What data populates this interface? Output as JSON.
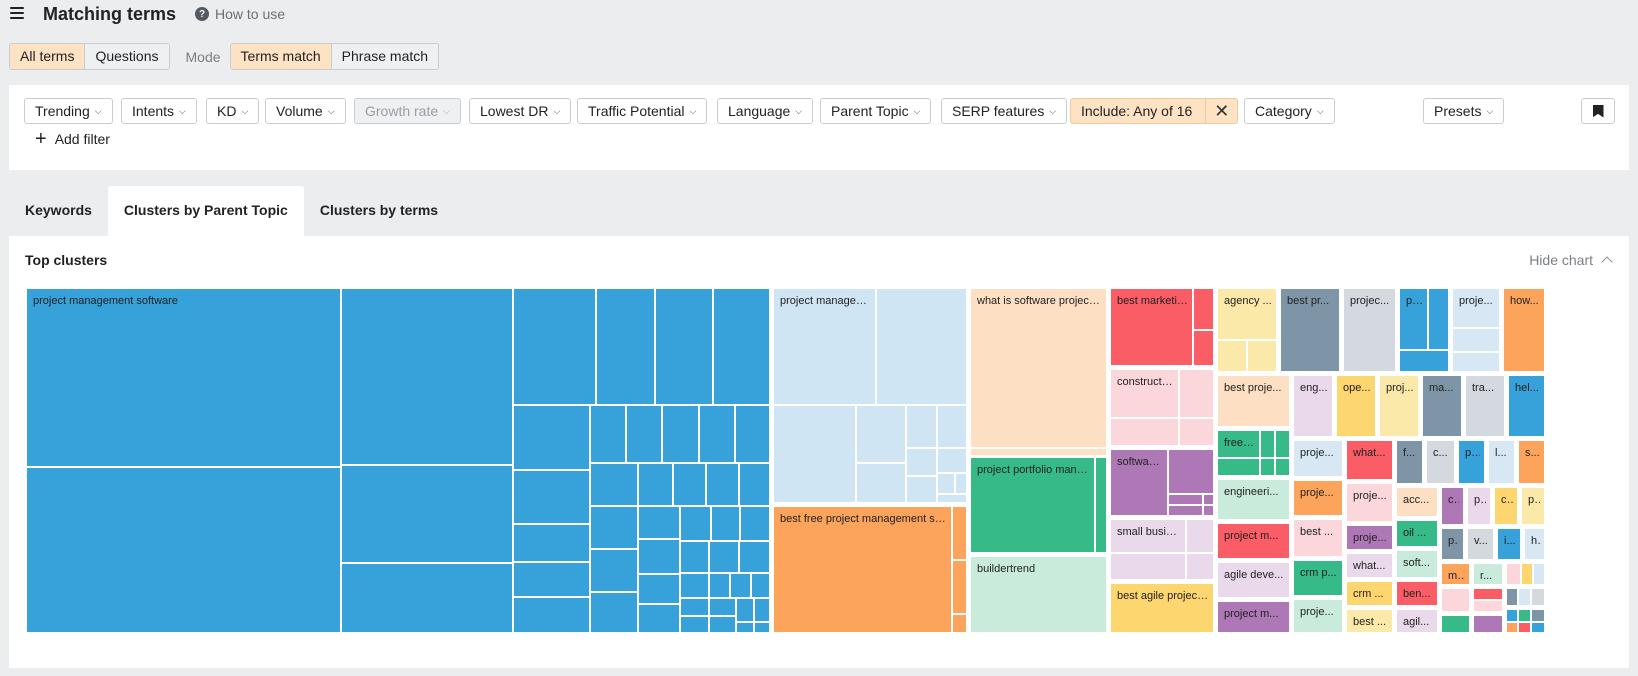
{
  "header": {
    "title": "Matching terms",
    "how_to_use": "How to use"
  },
  "modebar": {
    "scope_options": [
      "All terms",
      "Questions"
    ],
    "scope_selected": "All terms",
    "mode_label": "Mode",
    "mode_options": [
      "Terms match",
      "Phrase match"
    ],
    "mode_selected": "Terms match"
  },
  "filters": {
    "items": [
      "Trending",
      "Intents",
      "KD",
      "Volume",
      "Growth rate",
      "Lowest DR",
      "Traffic Potential",
      "Language",
      "Parent Topic",
      "SERP features"
    ],
    "disabled": [
      "Growth rate"
    ],
    "include_label": "Include: Any of 16",
    "category_label": "Category",
    "presets_label": "Presets",
    "add_filter_label": "Add filter"
  },
  "tabs": {
    "items": [
      "Keywords",
      "Clusters by Parent Topic",
      "Clusters by terms"
    ],
    "active": "Clusters by Parent Topic"
  },
  "chart_panel": {
    "title": "Top clusters",
    "hide_chart_label": "Hide chart"
  },
  "colors": {
    "blue": "#37a1da",
    "lightblue": "#cfe5f3",
    "peach": "#fde0c4",
    "orange": "#fca35c",
    "red": "#fb5d66",
    "pink": "#fbd6db",
    "lightpink": "#ead9ea",
    "purple": "#ae78b6",
    "green": "#35ba88",
    "mint": "#c9ebdb",
    "yellow": "#fed66f",
    "paleyellow": "#fbe9a9",
    "slate": "#7d95a6",
    "gray": "#d3d9df",
    "paleblue": "#d7e7f3"
  },
  "chart_data": {
    "type": "treemap",
    "title": "Top clusters",
    "clusters": [
      {
        "label": "project management software",
        "color": "blue"
      },
      {
        "label": "project management tools",
        "color": "lightblue"
      },
      {
        "label": "best free project management software",
        "color": "orange"
      },
      {
        "label": "what is software project management",
        "color": "peach"
      },
      {
        "label": "project portfolio management",
        "color": "green"
      },
      {
        "label": "buildertrend",
        "color": "mint"
      },
      {
        "label": "best marketing project management",
        "color": "red"
      },
      {
        "label": "construction project management",
        "color": "pink"
      },
      {
        "label": "software development project management",
        "color": "purple"
      },
      {
        "label": "small business project management",
        "color": "lightpink"
      },
      {
        "label": "best agile project management",
        "color": "yellow"
      },
      {
        "label": "agency ...",
        "color": "paleyellow"
      },
      {
        "label": "best pr...",
        "color": "slate"
      },
      {
        "label": "projec...",
        "color": "gray"
      },
      {
        "label": "proje...",
        "color": "blue"
      },
      {
        "label": "proje...",
        "color": "paleblue"
      },
      {
        "label": "how...",
        "color": "orange"
      },
      {
        "label": "best proje...",
        "color": "peach"
      },
      {
        "label": "eng...",
        "color": "lightpink"
      },
      {
        "label": "ope...",
        "color": "yellow"
      },
      {
        "label": "proj...",
        "color": "paleyellow"
      },
      {
        "label": "ma...",
        "color": "slate"
      },
      {
        "label": "tra...",
        "color": "gray"
      },
      {
        "label": "hel...",
        "color": "blue"
      },
      {
        "label": "free proje...",
        "color": "green"
      },
      {
        "label": "proje...",
        "color": "paleblue"
      },
      {
        "label": "what...",
        "color": "red"
      },
      {
        "label": "f...",
        "color": "slate"
      },
      {
        "label": "c...",
        "color": "gray"
      },
      {
        "label": "p...",
        "color": "blue"
      },
      {
        "label": "l...",
        "color": "paleblue"
      },
      {
        "label": "s...",
        "color": "orange"
      },
      {
        "label": "engineeri...",
        "color": "mint"
      },
      {
        "label": "proje...",
        "color": "orange"
      },
      {
        "label": "proje...",
        "color": "pink"
      },
      {
        "label": "acc...",
        "color": "peach"
      },
      {
        "label": "c...",
        "color": "purple"
      },
      {
        "label": "p...",
        "color": "lightpink"
      },
      {
        "label": "c...",
        "color": "yellow"
      },
      {
        "label": "p...",
        "color": "paleyellow"
      },
      {
        "label": "project m...",
        "color": "red"
      },
      {
        "label": "best ...",
        "color": "pink"
      },
      {
        "label": "proje...",
        "color": "purple"
      },
      {
        "label": "oil ...",
        "color": "green"
      },
      {
        "label": "p...",
        "color": "slate"
      },
      {
        "label": "v...",
        "color": "gray"
      },
      {
        "label": "i...",
        "color": "blue"
      },
      {
        "label": "h...",
        "color": "paleblue"
      },
      {
        "label": "agile deve...",
        "color": "lightpink"
      },
      {
        "label": "crm p...",
        "color": "green"
      },
      {
        "label": "what...",
        "color": "lightpink"
      },
      {
        "label": "soft...",
        "color": "mint"
      },
      {
        "label": "m...",
        "color": "orange"
      },
      {
        "label": "r...",
        "color": "mint"
      },
      {
        "label": "crm ...",
        "color": "yellow"
      },
      {
        "label": "ben...",
        "color": "red"
      },
      {
        "label": "project m...",
        "color": "purple"
      },
      {
        "label": "proje...",
        "color": "mint"
      },
      {
        "label": "best ...",
        "color": "paleyellow"
      },
      {
        "label": "agil...",
        "color": "lightpink"
      }
    ]
  }
}
